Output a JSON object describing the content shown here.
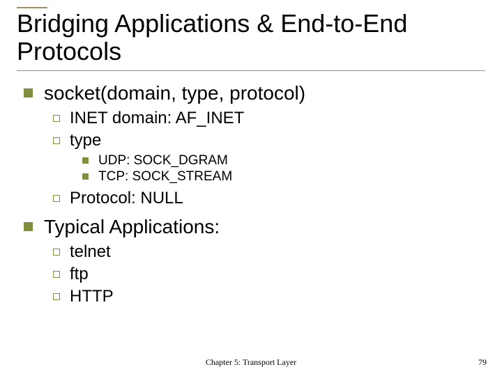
{
  "colors": {
    "bullet": "#818e3e",
    "rule": "#a09068",
    "text": "#000000",
    "background": "#ffffff"
  },
  "typography": {
    "title_fontsize": 36,
    "lvl1_fontsize": 28,
    "lvl2_fontsize": 24,
    "lvl3_fontsize": 19,
    "footer_fontsize": 12,
    "family": "Arial",
    "footer_family": "Times New Roman"
  },
  "title": "Bridging Applications & End-to-End Protocols",
  "items": {
    "socket": {
      "label": "socket(domain, type, protocol)",
      "inet": "INET domain: AF_INET",
      "type": "type",
      "udp": "UDP: SOCK_DGRAM",
      "tcp": "TCP: SOCK_STREAM",
      "protocol": "Protocol: NULL"
    },
    "apps": {
      "label": "Typical Applications:",
      "a1": "telnet",
      "a2": "ftp",
      "a3": "HTTP"
    }
  },
  "footer": {
    "center": "Chapter 5: Transport Layer",
    "page": "79"
  }
}
